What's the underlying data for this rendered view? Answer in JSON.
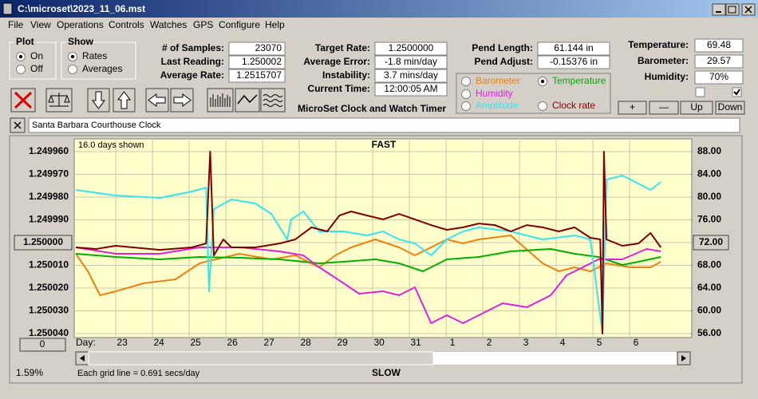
{
  "window": {
    "title": "C:\\microset\\2023_11_06.mst"
  },
  "menu": [
    "File",
    "View",
    "Operations",
    "Controls",
    "Watches",
    "GPS",
    "Configure",
    "Help"
  ],
  "plot_group": {
    "title": "Plot",
    "options": [
      "On",
      "Off"
    ],
    "selected": 0
  },
  "show_group": {
    "title": "Show",
    "options": [
      "Rates",
      "Averages"
    ],
    "selected": 0
  },
  "fields": [
    {
      "label": "# of Samples:",
      "value": "23070"
    },
    {
      "label": "Last Reading:",
      "value": "1.250002"
    },
    {
      "label": "Average Rate:",
      "value": "1.2515707"
    },
    {
      "label": "Target Rate:",
      "value": "1.2500000"
    },
    {
      "label": "Average Error:",
      "value": "-1.8 min/day"
    },
    {
      "label": "Instability:",
      "value": "3.7 mins/day"
    },
    {
      "label": "Current Time:",
      "value": "12:00:05 AM"
    },
    {
      "label": "Pend Length:",
      "value": "61.144 in"
    },
    {
      "label": "Pend Adjust:",
      "value": "-0.15376 in"
    },
    {
      "label": "Temperature:",
      "value": "69.48"
    },
    {
      "label": "Barometer:",
      "value": "29.57"
    },
    {
      "label": "Humidity:",
      "value": "70%"
    }
  ],
  "checkboxes": [
    false,
    true
  ],
  "timer_title": "MicroSet Clock and Watch Timer",
  "small_buttons": [
    "+",
    "—",
    "Up",
    "Down"
  ],
  "description": "Santa Barbara Courthouse Clock",
  "chart_data": {
    "type": "line",
    "days_shown": "16.0 days shown",
    "top_label": "FAST",
    "bottom_label": "SLOW",
    "grid_note": "Each grid line = 0.691 secs/day",
    "x_prefix": "Day:",
    "offset_button": "0",
    "percent": "1.59%",
    "grid": true,
    "xlim": [
      -1.09,
      15.65
    ],
    "xticks": [
      {
        "value": 0,
        "label": "23"
      },
      {
        "value": 1,
        "label": "24"
      },
      {
        "value": 2,
        "label": "25"
      },
      {
        "value": 3,
        "label": "26"
      },
      {
        "value": 4,
        "label": "27"
      },
      {
        "value": 5,
        "label": "28"
      },
      {
        "value": 6,
        "label": "29"
      },
      {
        "value": 7,
        "label": "30"
      },
      {
        "value": 8,
        "label": "31"
      },
      {
        "value": 9,
        "label": "1"
      },
      {
        "value": 10,
        "label": "2"
      },
      {
        "value": 11,
        "label": "3"
      },
      {
        "value": 12,
        "label": "4"
      },
      {
        "value": 13,
        "label": "5"
      },
      {
        "value": 14,
        "label": "6"
      }
    ],
    "ylim": [
      1.25004,
      1.24996
    ],
    "yticks": [
      {
        "value": 1.24996,
        "label": "1.249960"
      },
      {
        "value": 1.24997,
        "label": "1.249970"
      },
      {
        "value": 1.24998,
        "label": "1.249980"
      },
      {
        "value": 1.24999,
        "label": "1.249990"
      },
      {
        "value": 1.25,
        "label": "1.250000"
      },
      {
        "value": 1.25001,
        "label": "1.250010"
      },
      {
        "value": 1.25002,
        "label": "1.250020"
      },
      {
        "value": 1.25003,
        "label": "1.250030"
      },
      {
        "value": 1.25004,
        "label": "1.250040"
      }
    ],
    "y2lim": [
      56,
      88
    ],
    "y2ticks": [
      {
        "value": 88,
        "label": "88.00"
      },
      {
        "value": 84,
        "label": "84.00"
      },
      {
        "value": 80,
        "label": "80.00"
      },
      {
        "value": 76,
        "label": "76.00"
      },
      {
        "value": 72,
        "label": "72.00"
      },
      {
        "value": 68,
        "label": "68.00"
      },
      {
        "value": 64,
        "label": "64.00"
      },
      {
        "value": 60,
        "label": "60.00"
      },
      {
        "value": 56,
        "label": "56.00"
      }
    ],
    "series": [
      {
        "name": "Barometer",
        "color": "#f08010",
        "axis": "y2",
        "x": [
          -1.09,
          -0.76,
          -0.43,
          0,
          0.76,
          1.63,
          2.28,
          2.72,
          3.37,
          4.24,
          4.89,
          5.54,
          5.98,
          6.41,
          7.07,
          7.72,
          8.15,
          8.59,
          9.02,
          9.46,
          9.89,
          10.76,
          11.63,
          12.07,
          12.5,
          12.93,
          13.37,
          14.02,
          14.57,
          14.85
        ],
        "values": [
          70.04,
          66.95,
          62.74,
          63.44,
          64.84,
          65.54,
          68.35,
          69.05,
          70.04,
          69.05,
          69.75,
          67.65,
          69.75,
          71.16,
          72.56,
          71.16,
          69.75,
          71.16,
          72.56,
          71.86,
          72.56,
          73.26,
          68.35,
          66.95,
          67.65,
          66.95,
          68.35,
          67.65,
          67.65,
          68.63
        ]
      },
      {
        "name": "Temperature",
        "color": "#00b000",
        "axis": "y2",
        "selected": true,
        "x": [
          -1.09,
          0,
          1.2,
          2.28,
          3.37,
          4.46,
          5.54,
          6.2,
          7.07,
          7.72,
          8.37,
          9.02,
          9.89,
          10.76,
          11.85,
          12.5,
          13.15,
          13.8,
          14.24,
          14.85
        ],
        "values": [
          70.04,
          69.47,
          69.05,
          69.47,
          69.33,
          69.05,
          68.35,
          68.63,
          69.05,
          68.35,
          66.95,
          69.05,
          69.47,
          70.46,
          70.88,
          70.04,
          69.47,
          68.07,
          68.63,
          69.47
        ]
      },
      {
        "name": "Humidity",
        "color": "#e020e0",
        "axis": "y2",
        "x": [
          -1.09,
          0,
          1.2,
          2.28,
          3.37,
          4.46,
          5.11,
          5.54,
          5.98,
          6.63,
          7.28,
          7.72,
          8.15,
          8.59,
          9.02,
          9.46,
          9.89,
          10.54,
          11.2,
          11.85,
          12.28,
          12.72,
          13.15,
          13.8,
          14.46,
          14.85
        ],
        "values": [
          71.16,
          70.04,
          70.04,
          71.16,
          71.16,
          70.46,
          69.75,
          67.65,
          65.82,
          63.02,
          63.44,
          62.74,
          64.14,
          57.82,
          59.23,
          57.82,
          59.23,
          61.33,
          60.63,
          62.74,
          66.25,
          67.65,
          69.05,
          69.05,
          70.88,
          70.46
        ]
      },
      {
        "name": "Amplitude",
        "color": "#33e6f0",
        "axis": "y2",
        "x": [
          -1.09,
          0,
          1.2,
          2.07,
          2.46,
          2.54,
          2.67,
          3.15,
          3.8,
          4.24,
          4.67,
          4.78,
          5.11,
          5.54,
          6.2,
          6.85,
          7.28,
          7.72,
          8.15,
          8.59,
          9.02,
          9.46,
          9.89,
          10.76,
          11.63,
          12.5,
          12.93,
          13.26,
          13.37,
          13.8,
          14.24,
          14.57,
          14.85
        ],
        "values": [
          81.26,
          80.28,
          79.86,
          80.98,
          81.68,
          63.44,
          77.89,
          79.58,
          78.88,
          77.05,
          72.56,
          76.07,
          77.47,
          73.96,
          73.96,
          73.26,
          73.96,
          72.56,
          71.86,
          69.75,
          72.56,
          73.96,
          74.67,
          73.96,
          72.56,
          73.26,
          72.56,
          56,
          83.09,
          83.79,
          82.39,
          81.26,
          82.67
        ]
      },
      {
        "name": "Clock rate",
        "color": "#800000",
        "x": [
          -1.09,
          -0.54,
          0,
          1.2,
          2.07,
          2.46,
          2.57,
          2.67,
          2.93,
          3.15,
          3.8,
          4.46,
          4.89,
          5.33,
          5.76,
          6.09,
          6.41,
          6.85,
          7.28,
          7.72,
          8.15,
          8.59,
          9.02,
          9.46,
          9.89,
          10.33,
          10.76,
          11.2,
          11.63,
          12.07,
          12.5,
          12.93,
          13.2,
          13.26,
          13.3,
          13.37,
          13.8,
          14.24,
          14.57,
          14.85
        ],
        "values": [
          1.2500021,
          1.2500028,
          1.2500014,
          1.2500032,
          1.2500021,
          1.2500004,
          1.24996,
          1.2500056,
          1.2499986,
          1.2500021,
          1.2500021,
          1.2500004,
          1.2499986,
          1.2499933,
          1.2499951,
          1.2499881,
          1.2499863,
          1.2499881,
          1.2499898,
          1.2499874,
          1.2499898,
          1.2499923,
          1.2499944,
          1.2499933,
          1.2499916,
          1.2499923,
          1.2499951,
          1.2499923,
          1.2499933,
          1.2499951,
          1.2499933,
          1.2499979,
          1.2499986,
          1.25004,
          1.24996,
          1.2499986,
          1.2500014,
          1.2500004,
          1.2499958,
          1.2500021
        ]
      }
    ]
  }
}
